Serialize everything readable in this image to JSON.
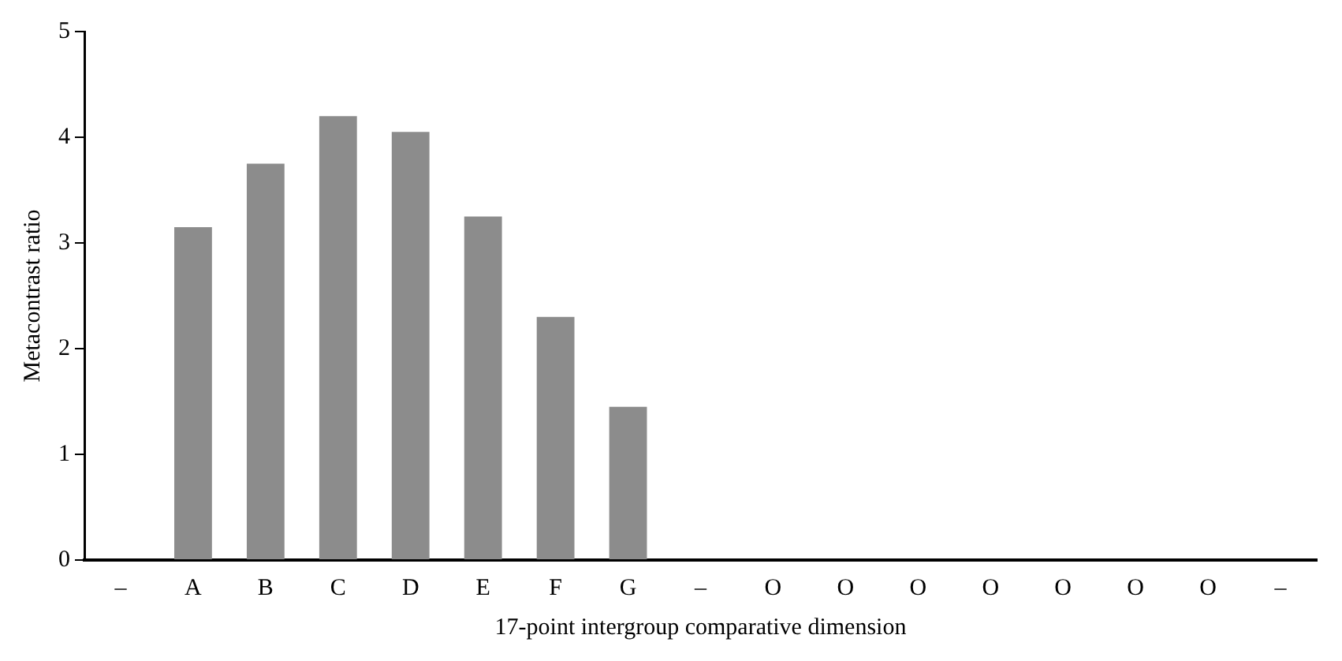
{
  "chart_data": {
    "type": "bar",
    "xlabel": "17-point intergroup comparative dimension",
    "ylabel": "Metacontrast ratio",
    "categories": [
      "–",
      "A",
      "B",
      "C",
      "D",
      "E",
      "F",
      "G",
      "–",
      "O",
      "O",
      "O",
      "O",
      "O",
      "O",
      "O",
      "–"
    ],
    "values": [
      null,
      3.15,
      3.75,
      4.2,
      4.05,
      3.25,
      2.3,
      1.45,
      null,
      null,
      null,
      null,
      null,
      null,
      null,
      null,
      null
    ],
    "color": "#8c8c8c",
    "ylim": [
      0,
      5
    ],
    "yticks": [
      0,
      1,
      2,
      3,
      4,
      5
    ],
    "grid": false,
    "legend": false
  }
}
